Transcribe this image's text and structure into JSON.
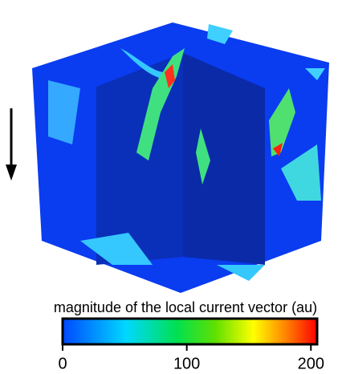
{
  "colorbar": {
    "label": "magnitude of the local current vector (au)",
    "lim": [
      0,
      205
    ],
    "ticks": [
      0,
      100,
      200
    ]
  }
}
